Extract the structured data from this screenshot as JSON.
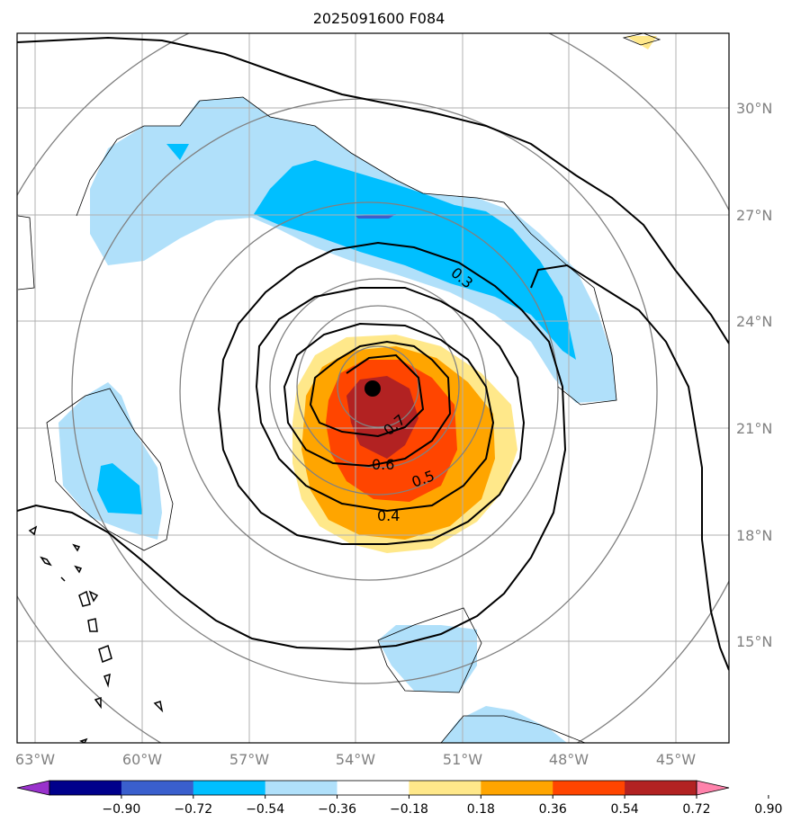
{
  "title": "2025091600 F084",
  "lon_labels": [
    "63°W",
    "60°W",
    "57°W",
    "54°W",
    "51°W",
    "48°W",
    "45°W"
  ],
  "lat_labels": [
    "30°N",
    "27°N",
    "24°N",
    "21°N",
    "18°N",
    "15°N"
  ],
  "contour_labels": [
    "0.3",
    "0.7",
    "0.6",
    "0.5",
    "0.4"
  ],
  "colorbar": {
    "ticks": [
      "−0.90",
      "−0.72",
      "−0.54",
      "−0.36",
      "−0.18",
      "0.18",
      "0.36",
      "0.54",
      "0.72",
      "0.90"
    ],
    "colors": [
      "#9932cc",
      "#00008b",
      "#3a5fcd",
      "#00bfff",
      "#b0e0fa",
      "#ffffff",
      "#ffe88a",
      "#ffa500",
      "#ff4500",
      "#b22222",
      "#ff82ab"
    ]
  },
  "colors": {
    "light_blue": "#b0e0fa",
    "blue": "#00bfff",
    "dark_blue": "#3a5fcd",
    "yellow": "#ffe88a",
    "orange": "#ffa500",
    "red_orange": "#ff4500",
    "dark_red": "#b22222",
    "grid": "#b0b0b0"
  },
  "center_marker": "storm-center"
}
